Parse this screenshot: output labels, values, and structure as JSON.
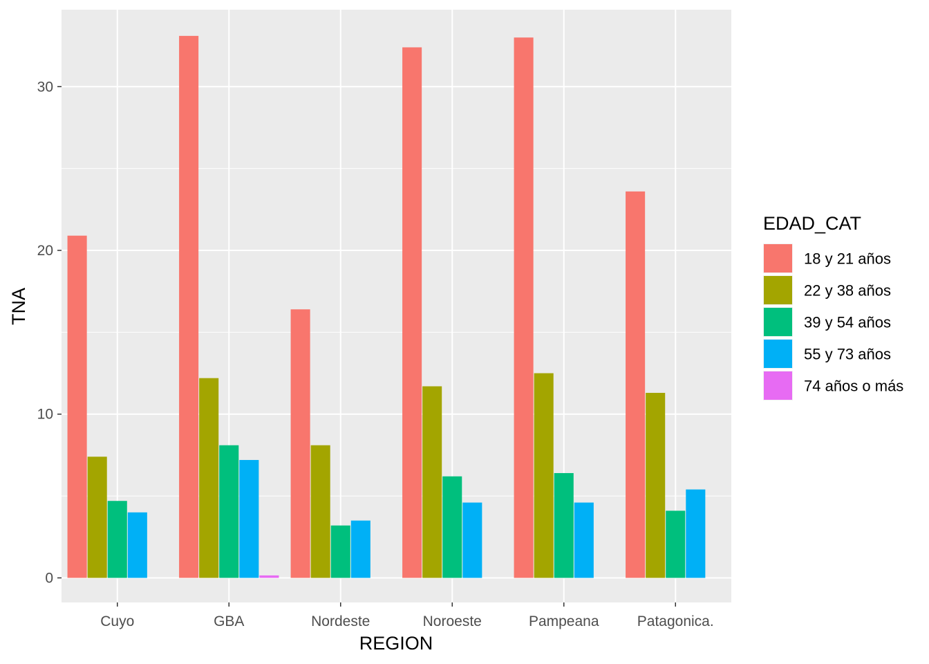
{
  "chart_data": {
    "type": "bar",
    "xlabel": "REGION",
    "ylabel": "TNA",
    "ylim": [
      -1.5,
      34.7
    ],
    "yticks": [
      0,
      10,
      20,
      30
    ],
    "categories": [
      "Cuyo",
      "GBA",
      "Nordeste",
      "Noroeste",
      "Pampeana",
      "Patagonica."
    ],
    "legend": {
      "title": "EDAD_CAT",
      "placement": "right"
    },
    "grid": true,
    "series": [
      {
        "name": "18 y 21 años",
        "color": "#F8766D",
        "values": [
          20.9,
          33.1,
          16.4,
          32.4,
          33.0,
          23.6
        ]
      },
      {
        "name": "22 y 38 años",
        "color": "#A3A500",
        "values": [
          7.4,
          12.2,
          8.1,
          11.7,
          12.5,
          11.3
        ]
      },
      {
        "name": "39 y 54 años",
        "color": "#00BF7D",
        "values": [
          4.7,
          8.1,
          3.2,
          6.2,
          6.4,
          4.1
        ]
      },
      {
        "name": "55 y 73 años",
        "color": "#00B0F6",
        "values": [
          4.0,
          7.2,
          3.5,
          4.6,
          4.6,
          5.4
        ]
      },
      {
        "name": "74 años o más",
        "color": "#E76BF3",
        "values": [
          null,
          0.15,
          null,
          null,
          null,
          null
        ]
      }
    ]
  }
}
